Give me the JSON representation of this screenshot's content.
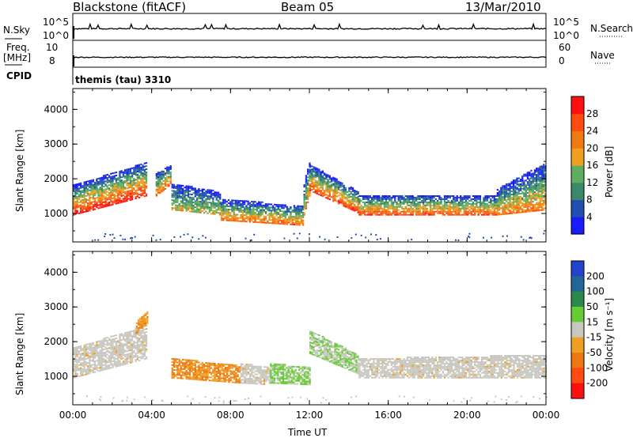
{
  "header": {
    "station": "Blackstone (fitACF)",
    "beam": "Beam 05",
    "date": "13/Mar/2010"
  },
  "top_panels": {
    "nsky_label": "N.Sky",
    "nsearch_label": "N.Search",
    "nsky_ticks": [
      "10^5",
      "10^0"
    ],
    "nsearch_ticks": [
      "10^5",
      "10^0"
    ],
    "freq_label_1": "Freq.",
    "freq_label_2": "[MHz]",
    "freq_ticks": [
      "10",
      "8"
    ],
    "nave_label": "Nave",
    "nave_ticks": [
      "60",
      "0"
    ],
    "cpid_label": "CPID",
    "cpid_value": "themis (tau) 3310"
  },
  "colors": {
    "power_scale": [
      "#1a1aff",
      "#1e4fb0",
      "#3a8a6a",
      "#5fae5f",
      "#f0a020",
      "#f07a10",
      "#ff4a10",
      "#ff1010"
    ],
    "velocity_scale": [
      "#2244cc",
      "#226699",
      "#2a8a4a",
      "#66cc33",
      "#c8c8c0",
      "#f0a020",
      "#ee7711",
      "#ff4a10",
      "#ff1010"
    ]
  },
  "chart_data": [
    {
      "type": "heatmap",
      "name": "power",
      "ylabel": "Slant Range [km]",
      "xlabel": "",
      "x_ticks": [
        "00:00",
        "04:00",
        "08:00",
        "12:00",
        "16:00",
        "20:00",
        "00:00"
      ],
      "xlim_hours": [
        0,
        24
      ],
      "y_ticks": [
        "1000",
        "2000",
        "3000",
        "4000"
      ],
      "ylim_km": [
        180,
        4600
      ],
      "colorbar": {
        "label": "Power [dB]",
        "ticks": [
          "4",
          "8",
          "12",
          "16",
          "20",
          "24",
          "28"
        ],
        "range": [
          0,
          32
        ]
      },
      "regions": [
        {
          "t": [
            0.0,
            3.7
          ],
          "r0": [
            1000,
            1550
          ],
          "thick": [
            800,
            900
          ],
          "level": 0.72
        },
        {
          "t": [
            4.2,
            5.0
          ],
          "r0": [
            1550,
            1900
          ],
          "thick": [
            600,
            500
          ],
          "level": 0.55
        },
        {
          "t": [
            5.0,
            7.5
          ],
          "r0": [
            1150,
            1000
          ],
          "thick": [
            700,
            600
          ],
          "level": 0.4
        },
        {
          "t": [
            7.5,
            11.7
          ],
          "r0": [
            850,
            700
          ],
          "thick": [
            550,
            500
          ],
          "level": 0.55
        },
        {
          "t": [
            11.7,
            12.0
          ],
          "r0": [
            1000,
            1600
          ],
          "thick": [
            900,
            900
          ],
          "level": 0.5
        },
        {
          "t": [
            12.0,
            14.5
          ],
          "r0": [
            1700,
            1050
          ],
          "thick": [
            700,
            550
          ],
          "level": 0.65
        },
        {
          "t": [
            14.5,
            21.5
          ],
          "r0": [
            1000,
            1000
          ],
          "thick": [
            500,
            500
          ],
          "level": 0.6
        },
        {
          "t": [
            21.5,
            24.0
          ],
          "r0": [
            1000,
            1150
          ],
          "thick": [
            700,
            1300
          ],
          "level": 0.55
        }
      ]
    },
    {
      "type": "heatmap",
      "name": "velocity",
      "ylabel": "Slant Range [km]",
      "xlabel": "Time UT",
      "x_ticks": [
        "00:00",
        "04:00",
        "08:00",
        "12:00",
        "16:00",
        "20:00",
        "00:00"
      ],
      "xlim_hours": [
        0,
        24
      ],
      "y_ticks": [
        "1000",
        "2000",
        "3000",
        "4000"
      ],
      "ylim_km": [
        180,
        4600
      ],
      "colorbar": {
        "label": "Velocity [m s⁻¹]",
        "ticks": [
          "200",
          "100",
          "50",
          "15",
          "-15",
          "-50",
          "-100",
          "-200"
        ],
        "range": [
          -250,
          250
        ]
      },
      "regions": [
        {
          "t": [
            0.0,
            3.7
          ],
          "r0": [
            1000,
            1550
          ],
          "thick": [
            800,
            900
          ],
          "vel": "near-zero"
        },
        {
          "t": [
            3.2,
            3.8
          ],
          "r0": [
            2300,
            2600
          ],
          "thick": [
            250,
            300
          ],
          "vel": "-50"
        },
        {
          "t": [
            5.0,
            8.5
          ],
          "r0": [
            1000,
            850
          ],
          "thick": [
            500,
            450
          ],
          "vel": "-75"
        },
        {
          "t": [
            8.5,
            10.0
          ],
          "r0": [
            850,
            800
          ],
          "thick": [
            500,
            450
          ],
          "vel": "near-zero"
        },
        {
          "t": [
            10.0,
            12.0
          ],
          "r0": [
            850,
            800
          ],
          "thick": [
            500,
            450
          ],
          "vel": "+30"
        },
        {
          "t": [
            12.0,
            14.5
          ],
          "r0": [
            1700,
            1100
          ],
          "thick": [
            600,
            500
          ],
          "vel": "+20"
        },
        {
          "t": [
            14.5,
            24.0
          ],
          "r0": [
            1000,
            1000
          ],
          "thick": [
            500,
            600
          ],
          "vel": "near-zero"
        }
      ]
    }
  ]
}
